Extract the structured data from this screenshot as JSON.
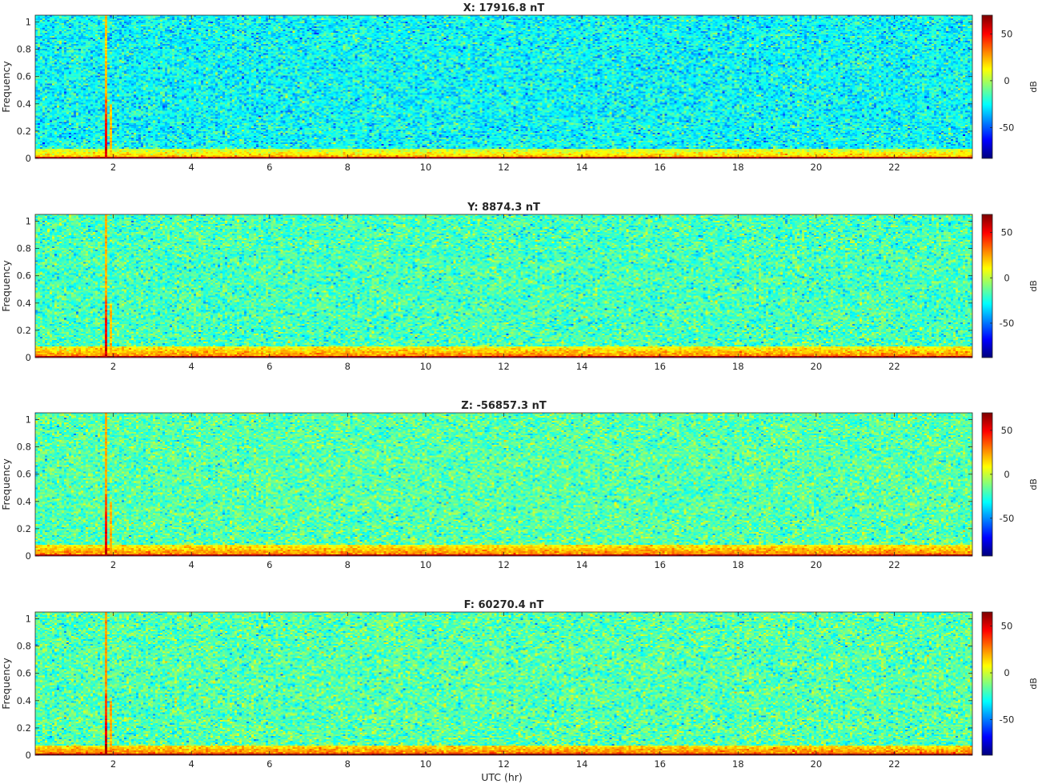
{
  "figure": {
    "xlabel": "UTC (hr)",
    "colormap": "jet",
    "x_ticks": [
      2,
      4,
      6,
      8,
      10,
      12,
      14,
      16,
      18,
      20,
      22
    ],
    "y_ticks": [
      0,
      0.2,
      0.4,
      0.6,
      0.8,
      1
    ],
    "y_tick_labels": [
      "0",
      "0.2",
      "0.4",
      "0.6",
      "0.8",
      "1"
    ]
  },
  "chart_data": [
    {
      "type": "heatmap",
      "title": "X: 17916.8 nT",
      "ylabel": "Frequency",
      "xlim": [
        0,
        24
      ],
      "ylim": [
        0,
        1.05
      ],
      "colorbar": {
        "label": "dB",
        "range": [
          -83,
          70
        ],
        "ticks": [
          50,
          0,
          -50
        ]
      },
      "features": {
        "spike_utc_hr": [
          1.8,
          1.95
        ],
        "low_freq_band_max": 0.07,
        "background_db": -25
      }
    },
    {
      "type": "heatmap",
      "title": "Y: 8874.3 nT",
      "ylabel": "Frequency",
      "xlim": [
        0,
        24
      ],
      "ylim": [
        0,
        1.05
      ],
      "colorbar": {
        "label": "dB",
        "range": [
          -88,
          70
        ],
        "ticks": [
          50,
          0,
          -50
        ]
      },
      "features": {
        "spike_utc_hr": [
          1.8,
          1.95
        ],
        "low_freq_band_max": 0.08,
        "background_db": -18
      }
    },
    {
      "type": "heatmap",
      "title": "Z: -56857.3 nT",
      "ylabel": "Frequency",
      "xlim": [
        0,
        24
      ],
      "ylim": [
        0,
        1.05
      ],
      "colorbar": {
        "label": "dB",
        "range": [
          -93,
          70
        ],
        "ticks": [
          50,
          0,
          -50
        ]
      },
      "features": {
        "spike_utc_hr": [
          1.8,
          1.95
        ],
        "low_freq_band_max": 0.08,
        "background_db": -18
      }
    },
    {
      "type": "heatmap",
      "title": "F: 60270.4 nT",
      "ylabel": "Frequency",
      "xlim": [
        0,
        24
      ],
      "ylim": [
        0,
        1.05
      ],
      "colorbar": {
        "label": "dB",
        "range": [
          -88,
          65
        ],
        "ticks": [
          50,
          0,
          -50
        ]
      },
      "features": {
        "spike_utc_hr": [
          1.8,
          1.95
        ],
        "low_freq_band_max": 0.07,
        "background_db": -18
      }
    }
  ]
}
